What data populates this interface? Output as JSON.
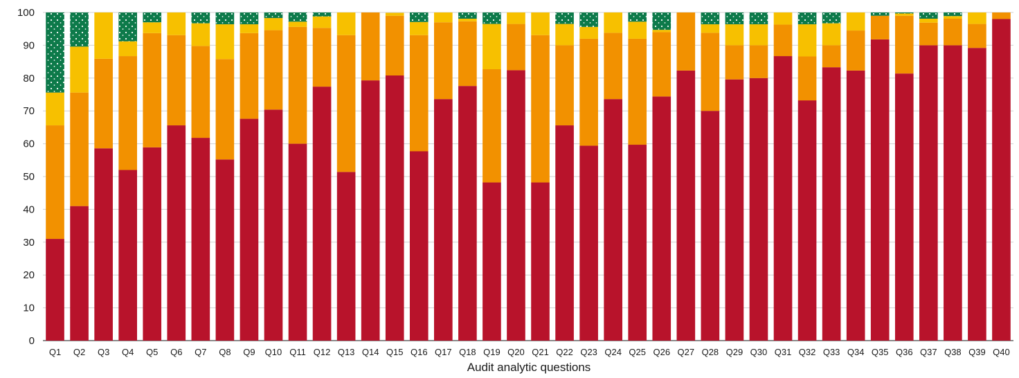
{
  "chart_data": {
    "type": "bar",
    "stacked": true,
    "title": "",
    "xlabel": "Audit analytic questions",
    "ylabel": "",
    "ylim": [
      0,
      100
    ],
    "yticks": [
      0,
      10,
      20,
      30,
      40,
      50,
      60,
      70,
      80,
      90,
      100
    ],
    "grid": true,
    "legend": "none",
    "categories": [
      "Q1",
      "Q2",
      "Q3",
      "Q4",
      "Q5",
      "Q6",
      "Q7",
      "Q8",
      "Q9",
      "Q10",
      "Q11",
      "Q12",
      "Q13",
      "Q14",
      "Q15",
      "Q16",
      "Q17",
      "Q18",
      "Q19",
      "Q20",
      "Q21",
      "Q22",
      "Q23",
      "Q24",
      "Q25",
      "Q26",
      "Q27",
      "Q28",
      "Q29",
      "Q30",
      "Q31",
      "Q32",
      "Q33",
      "Q34",
      "Q35",
      "Q36",
      "Q37",
      "Q38",
      "Q39",
      "Q40"
    ],
    "series": [
      {
        "color": "#b8132b",
        "values": [
          31,
          41,
          58.6,
          52,
          58.9,
          65.6,
          61.8,
          55.2,
          67.6,
          70.4,
          60,
          77.4,
          51.4,
          79.3,
          80.8,
          57.7,
          73.6,
          77.6,
          48.2,
          82.4,
          48.2,
          65.6,
          59.4,
          73.6,
          59.7,
          74.4,
          82.3,
          70,
          79.6,
          80,
          86.7,
          73.2,
          83.3,
          82.3,
          91.8,
          81.4,
          90,
          90,
          89.2,
          98
        ]
      },
      {
        "color": "#f29100",
        "values": [
          34.6,
          34.6,
          27.3,
          34.7,
          34.8,
          27.5,
          28,
          30.6,
          26.1,
          24.2,
          35.6,
          17.9,
          41.7,
          20.7,
          18.2,
          35.4,
          23.4,
          19.7,
          34.5,
          14.1,
          44.9,
          24.4,
          32.6,
          20.2,
          32.3,
          19.6,
          17.7,
          23.8,
          10.4,
          10,
          9.6,
          13.4,
          6.7,
          12.2,
          7.2,
          17.6,
          6.9,
          8.1,
          7.3,
          2
        ]
      },
      {
        "color": "#f7c000",
        "values": [
          10,
          14,
          14.1,
          4.5,
          3.3,
          6.9,
          6.9,
          10.6,
          2.7,
          3.7,
          1.6,
          3.5,
          6.9,
          0,
          0.9,
          4,
          3,
          0.8,
          13.8,
          3.5,
          6.9,
          6.5,
          3.6,
          6.2,
          5.2,
          0.7,
          0,
          2.6,
          6.4,
          6.4,
          3.7,
          9.8,
          6.7,
          5.5,
          0,
          0.7,
          1.2,
          0.8,
          3.5,
          0
        ]
      },
      {
        "color": "#0d7a4a",
        "values": [
          24.4,
          10.4,
          0,
          8.8,
          3,
          0,
          3.3,
          3.6,
          3.6,
          1.7,
          2.8,
          1.2,
          0,
          0,
          0,
          2.9,
          0,
          1.9,
          3.5,
          0,
          0,
          3.5,
          4.4,
          0,
          2.8,
          5.3,
          0,
          3.6,
          3.6,
          3.6,
          0,
          3.6,
          3.3,
          0,
          1,
          0.3,
          1.9,
          1.1,
          0,
          0
        ]
      }
    ]
  }
}
